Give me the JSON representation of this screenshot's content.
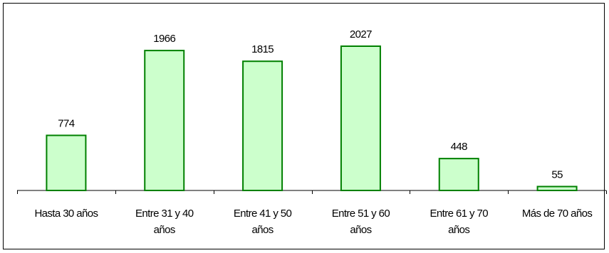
{
  "chart_data": {
    "type": "bar",
    "categories": [
      [
        "Hasta 30 años"
      ],
      [
        "Entre 31 y 40",
        "años"
      ],
      [
        "Entre 41 y 50",
        "años"
      ],
      [
        "Entre 51 y 60",
        "años"
      ],
      [
        "Entre 61 y 70",
        "años"
      ],
      [
        "Más de 70 años"
      ]
    ],
    "values": [
      774,
      1966,
      1815,
      2027,
      448,
      55
    ],
    "value_labels": [
      "774",
      "1966",
      "1815",
      "2027",
      "448",
      "55"
    ],
    "title": "",
    "xlabel": "",
    "ylabel": "",
    "ylim": [
      0,
      2300
    ],
    "grid": false,
    "legend": "none",
    "colors": {
      "bar_fill": "#ccffcc",
      "bar_stroke": "#008000",
      "axis": "#000000"
    }
  }
}
